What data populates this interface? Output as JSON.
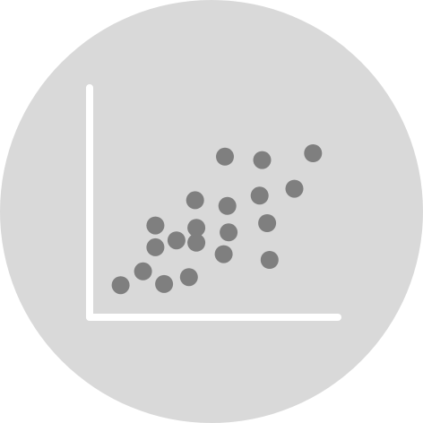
{
  "icon": {
    "name": "scatter-plot-icon",
    "background_color": "#d9d9d9",
    "axis_color": "#ffffff",
    "point_color": "#7f7f7f"
  },
  "chart_data": {
    "type": "scatter",
    "xlim": [
      0,
      100
    ],
    "ylim": [
      0,
      100
    ],
    "grid": false,
    "points": [
      {
        "x": 12.5,
        "y": 14.0
      },
      {
        "x": 21.5,
        "y": 20.0
      },
      {
        "x": 30.0,
        "y": 14.5
      },
      {
        "x": 40.0,
        "y": 17.5
      },
      {
        "x": 26.5,
        "y": 30.5
      },
      {
        "x": 35.0,
        "y": 33.5
      },
      {
        "x": 43.0,
        "y": 32.5
      },
      {
        "x": 26.5,
        "y": 40.0
      },
      {
        "x": 43.0,
        "y": 39.0
      },
      {
        "x": 54.0,
        "y": 27.5
      },
      {
        "x": 56.0,
        "y": 37.0
      },
      {
        "x": 42.5,
        "y": 51.0
      },
      {
        "x": 55.5,
        "y": 48.5
      },
      {
        "x": 68.5,
        "y": 53.0
      },
      {
        "x": 71.5,
        "y": 41.0
      },
      {
        "x": 72.5,
        "y": 25.0
      },
      {
        "x": 54.5,
        "y": 70.0
      },
      {
        "x": 69.5,
        "y": 68.5
      },
      {
        "x": 82.5,
        "y": 56.0
      },
      {
        "x": 90.0,
        "y": 71.5
      }
    ]
  }
}
